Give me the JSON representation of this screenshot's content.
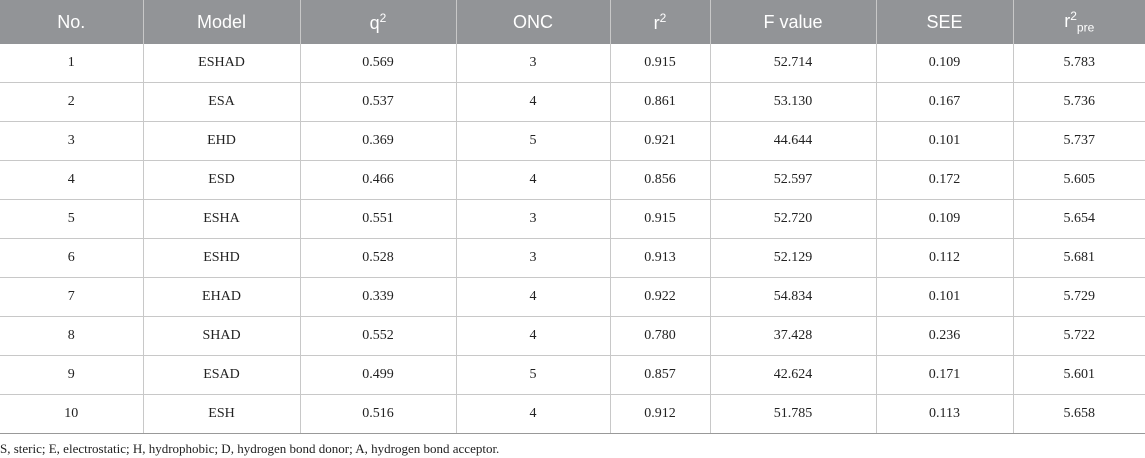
{
  "table": {
    "columns": [
      {
        "text": "No."
      },
      {
        "text": "Model"
      },
      {
        "text": "q",
        "sup": "2"
      },
      {
        "text": "ONC"
      },
      {
        "text": "r",
        "sup": "2"
      },
      {
        "text": "F value"
      },
      {
        "text": "SEE"
      },
      {
        "text": "r",
        "sup": "2",
        "sub": "pre"
      }
    ],
    "rows": [
      [
        "1",
        "ESHAD",
        "0.569",
        "3",
        "0.915",
        "52.714",
        "0.109",
        "5.783"
      ],
      [
        "2",
        "ESA",
        "0.537",
        "4",
        "0.861",
        "53.130",
        "0.167",
        "5.736"
      ],
      [
        "3",
        "EHD",
        "0.369",
        "5",
        "0.921",
        "44.644",
        "0.101",
        "5.737"
      ],
      [
        "4",
        "ESD",
        "0.466",
        "4",
        "0.856",
        "52.597",
        "0.172",
        "5.605"
      ],
      [
        "5",
        "ESHA",
        "0.551",
        "3",
        "0.915",
        "52.720",
        "0.109",
        "5.654"
      ],
      [
        "6",
        "ESHD",
        "0.528",
        "3",
        "0.913",
        "52.129",
        "0.112",
        "5.681"
      ],
      [
        "7",
        "EHAD",
        "0.339",
        "4",
        "0.922",
        "54.834",
        "0.101",
        "5.729"
      ],
      [
        "8",
        "SHAD",
        "0.552",
        "4",
        "0.780",
        "37.428",
        "0.236",
        "5.722"
      ],
      [
        "9",
        "ESAD",
        "0.499",
        "5",
        "0.857",
        "42.624",
        "0.171",
        "5.601"
      ],
      [
        "10",
        "ESH",
        "0.516",
        "4",
        "0.912",
        "51.785",
        "0.113",
        "5.658"
      ]
    ]
  },
  "footnote": "S, steric; E, electrostatic; H, hydrophobic; D, hydrogen bond donor; A, hydrogen bond acceptor."
}
